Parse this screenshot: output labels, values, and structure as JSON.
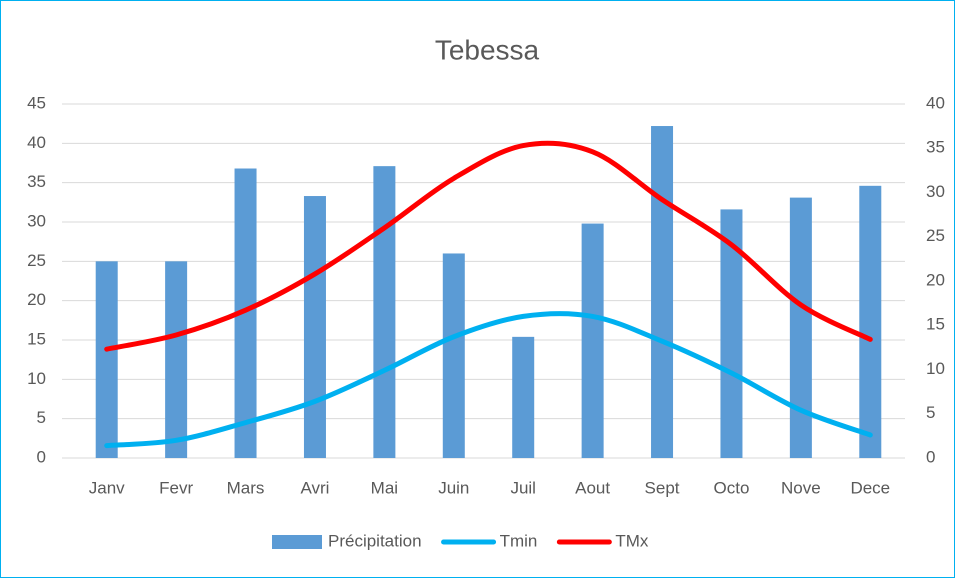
{
  "chart_data": {
    "type": "bar_line",
    "title": "Tebessa",
    "categories": [
      "Janv",
      "Fevr",
      "Mars",
      "Avri",
      "Mai",
      "Juin",
      "Juil",
      "Aout",
      "Sept",
      "Octo",
      "Nove",
      "Dece"
    ],
    "series": [
      {
        "name": "Précipitation",
        "type": "bar",
        "color": "#5b9bd5",
        "values": [
          25,
          25,
          36.8,
          33.3,
          37.1,
          26,
          15.4,
          29.8,
          42.2,
          31.6,
          33.1,
          34.6
        ]
      },
      {
        "name": "Tmin",
        "type": "line",
        "axis": "y2",
        "color": "#00b0f0",
        "values": [
          1.4,
          2.0,
          4.0,
          6.4,
          9.9,
          13.7,
          16.0,
          16.0,
          13.2,
          9.6,
          5.4,
          2.6
        ]
      },
      {
        "name": "TMx",
        "type": "line",
        "axis": "y2",
        "color": "#ff0000",
        "values": [
          12.3,
          13.9,
          16.7,
          20.8,
          26.0,
          31.6,
          35.3,
          34.6,
          29.2,
          24.1,
          17.3,
          13.4
        ]
      }
    ],
    "ylim": [
      0,
      45
    ],
    "yticks": [
      0,
      5,
      10,
      15,
      20,
      25,
      30,
      35,
      40,
      45
    ],
    "y2lim": [
      0,
      40
    ],
    "y2ticks": [
      0,
      5,
      10,
      15,
      20,
      25,
      30,
      35,
      40
    ],
    "grid": true,
    "legend": "bottom"
  }
}
